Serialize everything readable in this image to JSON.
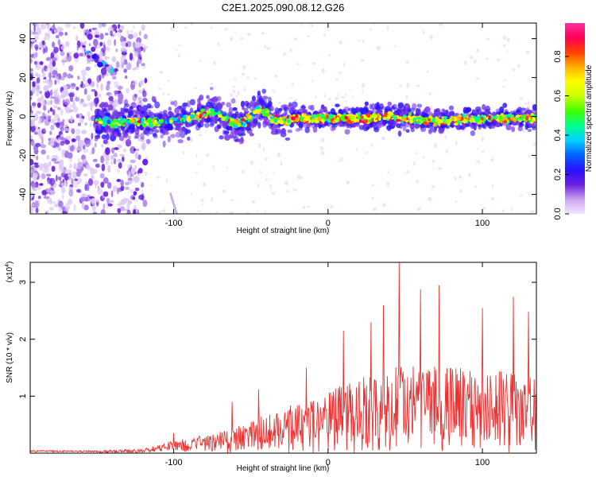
{
  "title": "C2E1.2025.090.08.12.G26",
  "chart_data": [
    {
      "type": "heatmap",
      "xlabel": "Height of straight line (km)",
      "ylabel": "Frequency (Hz)",
      "xlim": [
        -193,
        135
      ],
      "ylim": [
        -50,
        48
      ],
      "xticks": [
        -100,
        0,
        100
      ],
      "yticks": [
        -40,
        -20,
        0,
        20,
        40
      ],
      "colorbar": {
        "label": "Normalized spectral amplitude",
        "range": [
          0,
          0.97
        ],
        "ticks": [
          0.0,
          0.2,
          0.4,
          0.6,
          0.8
        ],
        "colormap": [
          "#f4e6ff",
          "#c9a3f0",
          "#6a1ee0",
          "#2a10ff",
          "#0060ff",
          "#00d0ff",
          "#00ff90",
          "#40ff00",
          "#c8ff00",
          "#ffff00",
          "#ffb000",
          "#ff4000",
          "#ff0055",
          "#ff2ea0"
        ]
      },
      "ridge": {
        "x": [
          -150,
          -140,
          -130,
          -120,
          -110,
          -100,
          -90,
          -80,
          -75,
          -70,
          -65,
          -60,
          -55,
          -50,
          -45,
          -40,
          -35,
          -30,
          -25,
          -20,
          -10,
          0,
          20,
          40,
          60,
          80,
          100,
          120,
          135
        ],
        "y": [
          -2,
          -3,
          -2,
          -3,
          -3,
          -2,
          -1,
          1,
          3,
          1,
          -2,
          -4,
          -3,
          0,
          4,
          2,
          -2,
          -3,
          -2,
          -1,
          -1,
          -1,
          -1,
          0,
          -2,
          -2,
          -1,
          -1,
          -1
        ]
      },
      "features": {
        "early_blob": {
          "x": [
            -156,
            -140
          ],
          "y": [
            22,
            32
          ]
        },
        "low_streak": {
          "x": [
            -102,
            -98
          ],
          "y": [
            -40,
            -50
          ]
        }
      }
    },
    {
      "type": "line",
      "xlabel": "Height of straight line (km)",
      "ylabel": "SNR (10 * v/v)",
      "y_multiplier": "(x10",
      "y_multiplier_exp": "4",
      "y_multiplier_close": ")",
      "xlim": [
        -193,
        135
      ],
      "ylim": [
        0,
        3.35
      ],
      "xticks": [
        -100,
        0,
        100
      ],
      "yticks": [
        1,
        2,
        3
      ],
      "color": "#ee3030",
      "envelope": {
        "x": [
          -193,
          -160,
          -140,
          -120,
          -105,
          -90,
          -75,
          -60,
          -45,
          -30,
          -20,
          -10,
          0,
          20,
          40,
          46,
          60,
          80,
          100,
          120,
          135
        ],
        "y": [
          0.03,
          0.03,
          0.06,
          0.08,
          0.2,
          0.28,
          0.36,
          0.5,
          0.66,
          0.82,
          0.95,
          1.08,
          1.2,
          1.4,
          1.55,
          1.62,
          1.62,
          1.58,
          1.55,
          1.5,
          1.45
        ]
      },
      "peaks": [
        {
          "x": 46,
          "y": 3.35
        },
        {
          "x": 72,
          "y": 2.95
        },
        {
          "x": 60,
          "y": 2.88
        },
        {
          "x": 120,
          "y": 2.75
        },
        {
          "x": 36,
          "y": 2.6
        },
        {
          "x": 100,
          "y": 2.55
        },
        {
          "x": 130,
          "y": 2.48
        },
        {
          "x": 28,
          "y": 2.3
        },
        {
          "x": 10,
          "y": 2.15
        },
        {
          "x": -14,
          "y": 1.5
        },
        {
          "x": -45,
          "y": 1.12
        },
        {
          "x": -62,
          "y": 0.9
        },
        {
          "x": -100,
          "y": 0.35
        }
      ]
    }
  ]
}
